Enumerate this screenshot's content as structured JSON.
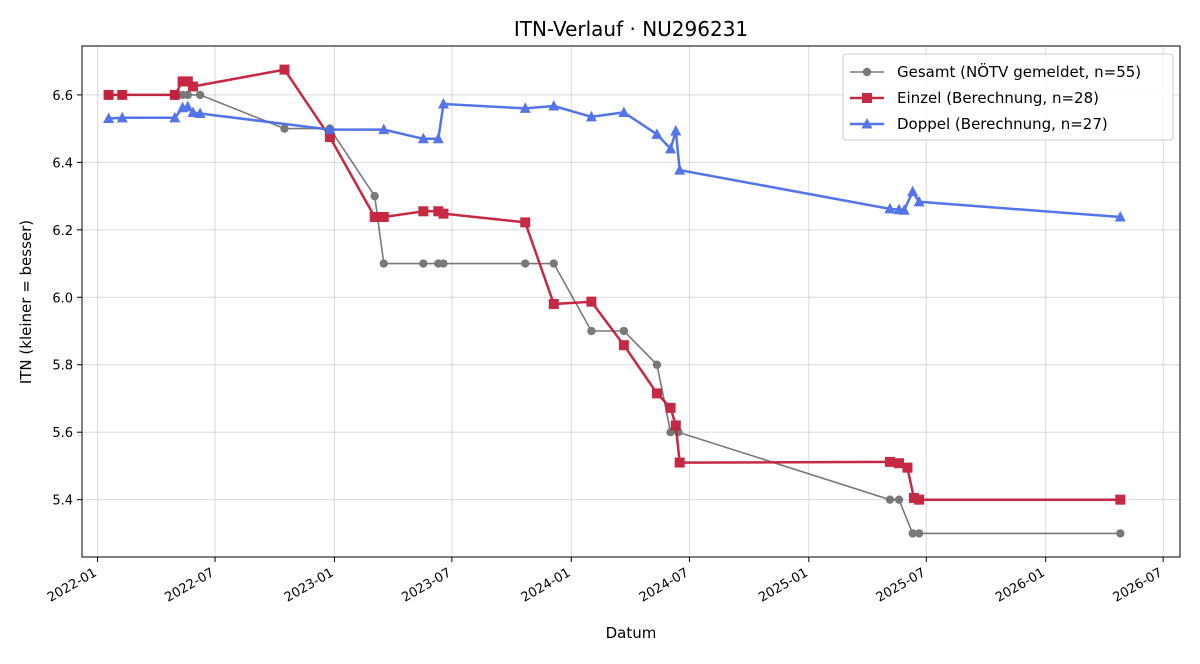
{
  "chart_data": {
    "type": "line",
    "title": "ITN-Verlauf · NU296231",
    "xlabel": "Datum",
    "ylabel": "ITN  (kleiner = besser)",
    "x_ticks": [
      "2022-01",
      "2022-07",
      "2023-01",
      "2023-07",
      "2024-01",
      "2024-07",
      "2025-01",
      "2025-07",
      "2026-01",
      "2026-07"
    ],
    "y_ticks": [
      "5.4",
      "5.6",
      "5.8",
      "6.0",
      "6.2",
      "6.4",
      "6.6"
    ],
    "xlim": [
      "2021-12-08",
      "2026-07-27"
    ],
    "ylim": [
      5.23,
      6.745
    ],
    "grid": true,
    "legend_position": "top-right",
    "series": [
      {
        "name": "Gesamt (NÖTV gemeldet, n=55)",
        "color": "#4d4d4d",
        "marker": "circle",
        "points": [
          [
            "2022-01-18",
            6.6
          ],
          [
            "2022-02-08",
            6.6
          ],
          [
            "2022-04-30",
            6.6
          ],
          [
            "2022-05-12",
            6.6
          ],
          [
            "2022-05-20",
            6.6
          ],
          [
            "2022-06-08",
            6.6
          ],
          [
            "2022-10-16",
            6.5
          ],
          [
            "2022-12-25",
            6.5
          ],
          [
            "2023-03-04",
            6.3
          ],
          [
            "2023-03-18",
            6.1
          ],
          [
            "2023-05-18",
            6.1
          ],
          [
            "2023-06-10",
            6.1
          ],
          [
            "2023-06-18",
            6.1
          ],
          [
            "2023-10-22",
            6.1
          ],
          [
            "2023-12-05",
            6.1
          ],
          [
            "2024-02-01",
            5.9
          ],
          [
            "2024-03-22",
            5.9
          ],
          [
            "2024-05-12",
            5.8
          ],
          [
            "2024-06-02",
            5.6
          ],
          [
            "2024-06-14",
            5.6
          ],
          [
            "2025-05-06",
            5.4
          ],
          [
            "2025-05-20",
            5.4
          ],
          [
            "2025-06-10",
            5.3
          ],
          [
            "2025-06-20",
            5.3
          ],
          [
            "2026-04-26",
            5.3
          ]
        ]
      },
      {
        "name": "Einzel (Berechnung, n=28)",
        "color": "#c41e3a",
        "marker": "square",
        "points": [
          [
            "2022-01-18",
            6.6
          ],
          [
            "2022-02-08",
            6.6
          ],
          [
            "2022-04-30",
            6.6
          ],
          [
            "2022-05-12",
            6.64
          ],
          [
            "2022-05-20",
            6.64
          ],
          [
            "2022-05-28",
            6.625
          ],
          [
            "2022-10-16",
            6.675
          ],
          [
            "2022-12-25",
            6.475
          ],
          [
            "2023-03-04",
            6.238
          ],
          [
            "2023-03-18",
            6.238
          ],
          [
            "2023-05-18",
            6.255
          ],
          [
            "2023-06-10",
            6.255
          ],
          [
            "2023-06-18",
            6.248
          ],
          [
            "2023-10-22",
            6.222
          ],
          [
            "2023-12-05",
            5.98
          ],
          [
            "2024-02-01",
            5.987
          ],
          [
            "2024-03-22",
            5.858
          ],
          [
            "2024-05-12",
            5.715
          ],
          [
            "2024-06-02",
            5.672
          ],
          [
            "2024-06-10",
            5.62
          ],
          [
            "2024-06-16",
            5.51
          ],
          [
            "2025-05-06",
            5.512
          ],
          [
            "2025-05-20",
            5.508
          ],
          [
            "2025-06-02",
            5.495
          ],
          [
            "2025-06-12",
            5.405
          ],
          [
            "2025-06-20",
            5.4
          ],
          [
            "2026-04-26",
            5.4
          ]
        ]
      },
      {
        "name": "Doppel (Berechnung, n=27)",
        "color": "#4a6ee8",
        "marker": "triangle",
        "points": [
          [
            "2022-01-18",
            6.53
          ],
          [
            "2022-02-08",
            6.532
          ],
          [
            "2022-04-30",
            6.532
          ],
          [
            "2022-05-12",
            6.562
          ],
          [
            "2022-05-20",
            6.565
          ],
          [
            "2022-05-28",
            6.548
          ],
          [
            "2022-06-08",
            6.545
          ],
          [
            "2022-12-25",
            6.497
          ],
          [
            "2023-03-18",
            6.497
          ],
          [
            "2023-05-18",
            6.47
          ],
          [
            "2023-06-10",
            6.47
          ],
          [
            "2023-06-18",
            6.573
          ],
          [
            "2023-10-22",
            6.56
          ],
          [
            "2023-12-05",
            6.567
          ],
          [
            "2024-02-01",
            6.535
          ],
          [
            "2024-03-22",
            6.548
          ],
          [
            "2024-05-12",
            6.483
          ],
          [
            "2024-06-02",
            6.44
          ],
          [
            "2024-06-10",
            6.493
          ],
          [
            "2024-06-16",
            6.377
          ],
          [
            "2025-05-06",
            6.262
          ],
          [
            "2025-05-20",
            6.26
          ],
          [
            "2025-05-28",
            6.258
          ],
          [
            "2025-06-10",
            6.313
          ],
          [
            "2025-06-20",
            6.283
          ],
          [
            "2026-04-26",
            6.238
          ]
        ]
      }
    ]
  }
}
